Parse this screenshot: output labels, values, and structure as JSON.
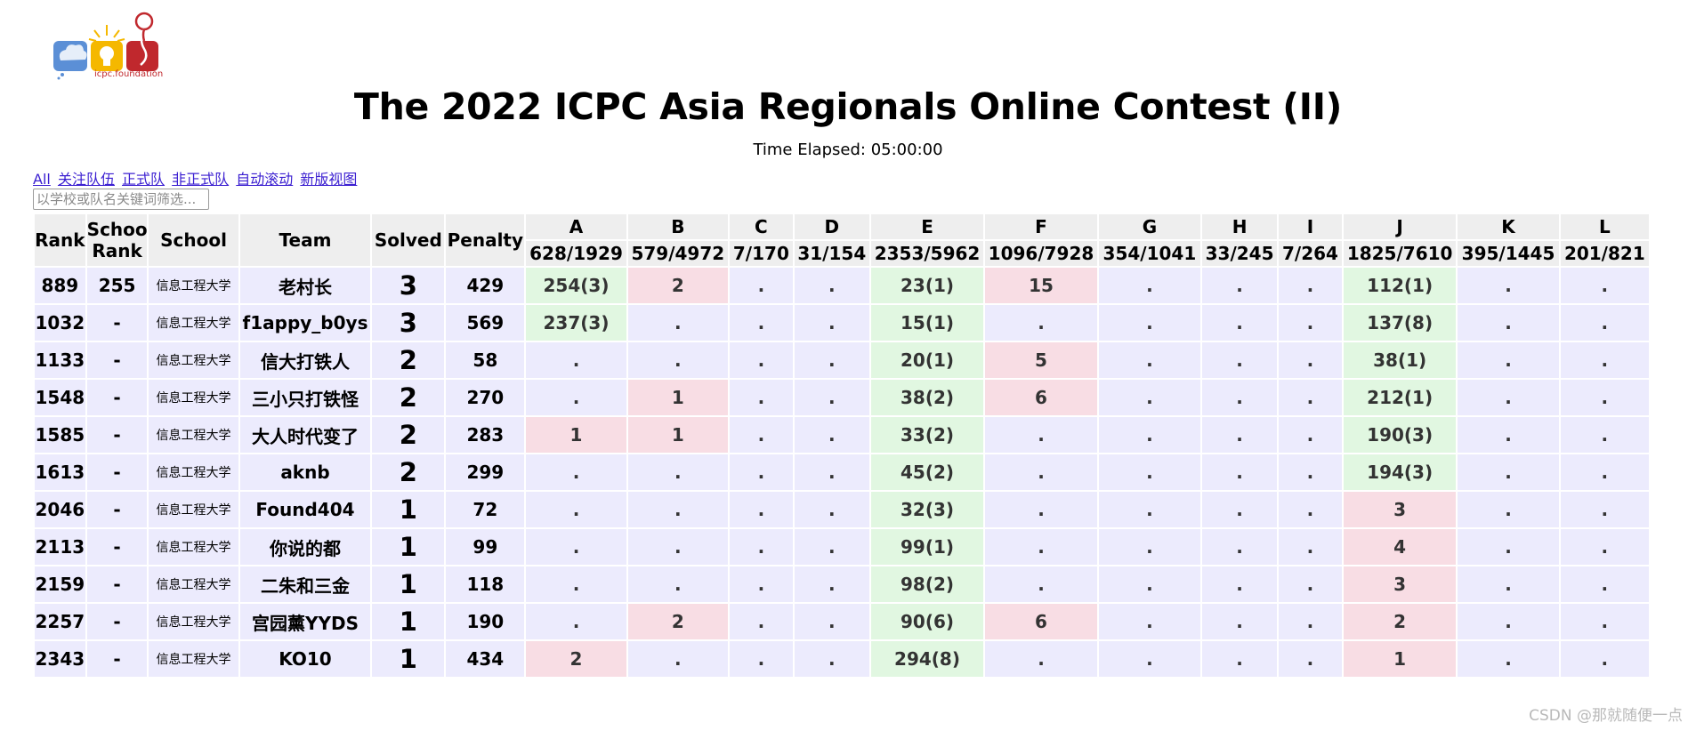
{
  "logo": {
    "caption": "icpc.foundation"
  },
  "contest": {
    "title": "The 2022 ICPC Asia Regionals Online Contest (II)",
    "elapsed": "Time Elapsed: 05:00:00"
  },
  "filters": [
    "All",
    "关注队伍",
    "正式队",
    "非正式队",
    "自动滚动",
    "新版视图"
  ],
  "search": {
    "placeholder": "以学校或队名关键词筛选..."
  },
  "headers": {
    "rank": "Rank",
    "school_rank_1": "School",
    "school_rank_2": "Rank",
    "school": "School",
    "team": "Team",
    "solved": "Solved",
    "penalty": "Penalty"
  },
  "problems": [
    {
      "id": "A",
      "stat": "628/1929"
    },
    {
      "id": "B",
      "stat": "579/4972"
    },
    {
      "id": "C",
      "stat": "7/170"
    },
    {
      "id": "D",
      "stat": "31/154"
    },
    {
      "id": "E",
      "stat": "2353/5962"
    },
    {
      "id": "F",
      "stat": "1096/7928"
    },
    {
      "id": "G",
      "stat": "354/1041"
    },
    {
      "id": "H",
      "stat": "33/245"
    },
    {
      "id": "I",
      "stat": "7/264"
    },
    {
      "id": "J",
      "stat": "1825/7610"
    },
    {
      "id": "K",
      "stat": "395/1445"
    },
    {
      "id": "L",
      "stat": "201/821"
    }
  ],
  "rows": [
    {
      "rank": "889",
      "school_rank": "255",
      "school": "信息工程大学",
      "team": "老村长",
      "solved": "3",
      "penalty": "429",
      "cells": [
        [
          "254(3)",
          "ok"
        ],
        [
          "2",
          "bad"
        ],
        [
          ".",
          ""
        ],
        [
          ".",
          ""
        ],
        [
          "23(1)",
          "ok"
        ],
        [
          "15",
          "bad"
        ],
        [
          ".",
          ""
        ],
        [
          ".",
          ""
        ],
        [
          ".",
          ""
        ],
        [
          "112(1)",
          "ok"
        ],
        [
          ".",
          ""
        ],
        [
          ".",
          ""
        ]
      ]
    },
    {
      "rank": "1032",
      "school_rank": "-",
      "school": "信息工程大学",
      "team": "f1appy_b0ys",
      "solved": "3",
      "penalty": "569",
      "cells": [
        [
          "237(3)",
          "ok"
        ],
        [
          ".",
          ""
        ],
        [
          ".",
          ""
        ],
        [
          ".",
          ""
        ],
        [
          "15(1)",
          "ok"
        ],
        [
          ".",
          ""
        ],
        [
          ".",
          ""
        ],
        [
          ".",
          ""
        ],
        [
          ".",
          ""
        ],
        [
          "137(8)",
          "ok"
        ],
        [
          ".",
          ""
        ],
        [
          ".",
          ""
        ]
      ]
    },
    {
      "rank": "1133",
      "school_rank": "-",
      "school": "信息工程大学",
      "team": "信大打铁人",
      "solved": "2",
      "penalty": "58",
      "cells": [
        [
          ".",
          ""
        ],
        [
          ".",
          ""
        ],
        [
          ".",
          ""
        ],
        [
          ".",
          ""
        ],
        [
          "20(1)",
          "ok"
        ],
        [
          "5",
          "bad"
        ],
        [
          ".",
          ""
        ],
        [
          ".",
          ""
        ],
        [
          ".",
          ""
        ],
        [
          "38(1)",
          "ok"
        ],
        [
          ".",
          ""
        ],
        [
          ".",
          ""
        ]
      ]
    },
    {
      "rank": "1548",
      "school_rank": "-",
      "school": "信息工程大学",
      "team": "三小只打铁怪",
      "solved": "2",
      "penalty": "270",
      "cells": [
        [
          ".",
          ""
        ],
        [
          "1",
          "bad"
        ],
        [
          ".",
          ""
        ],
        [
          ".",
          ""
        ],
        [
          "38(2)",
          "ok"
        ],
        [
          "6",
          "bad"
        ],
        [
          ".",
          ""
        ],
        [
          ".",
          ""
        ],
        [
          ".",
          ""
        ],
        [
          "212(1)",
          "ok"
        ],
        [
          ".",
          ""
        ],
        [
          ".",
          ""
        ]
      ]
    },
    {
      "rank": "1585",
      "school_rank": "-",
      "school": "信息工程大学",
      "team": "大人时代变了",
      "solved": "2",
      "penalty": "283",
      "cells": [
        [
          "1",
          "bad"
        ],
        [
          "1",
          "bad"
        ],
        [
          ".",
          ""
        ],
        [
          ".",
          ""
        ],
        [
          "33(2)",
          "ok"
        ],
        [
          ".",
          ""
        ],
        [
          ".",
          ""
        ],
        [
          ".",
          ""
        ],
        [
          ".",
          ""
        ],
        [
          "190(3)",
          "ok"
        ],
        [
          ".",
          ""
        ],
        [
          ".",
          ""
        ]
      ]
    },
    {
      "rank": "1613",
      "school_rank": "-",
      "school": "信息工程大学",
      "team": "aknb",
      "solved": "2",
      "penalty": "299",
      "cells": [
        [
          ".",
          ""
        ],
        [
          ".",
          ""
        ],
        [
          ".",
          ""
        ],
        [
          ".",
          ""
        ],
        [
          "45(2)",
          "ok"
        ],
        [
          ".",
          ""
        ],
        [
          ".",
          ""
        ],
        [
          ".",
          ""
        ],
        [
          ".",
          ""
        ],
        [
          "194(3)",
          "ok"
        ],
        [
          ".",
          ""
        ],
        [
          ".",
          ""
        ]
      ]
    },
    {
      "rank": "2046",
      "school_rank": "-",
      "school": "信息工程大学",
      "team": "Found404",
      "solved": "1",
      "penalty": "72",
      "cells": [
        [
          ".",
          ""
        ],
        [
          ".",
          ""
        ],
        [
          ".",
          ""
        ],
        [
          ".",
          ""
        ],
        [
          "32(3)",
          "ok"
        ],
        [
          ".",
          ""
        ],
        [
          ".",
          ""
        ],
        [
          ".",
          ""
        ],
        [
          ".",
          ""
        ],
        [
          "3",
          "bad"
        ],
        [
          ".",
          ""
        ],
        [
          ".",
          ""
        ]
      ]
    },
    {
      "rank": "2113",
      "school_rank": "-",
      "school": "信息工程大学",
      "team": "你说的都",
      "solved": "1",
      "penalty": "99",
      "cells": [
        [
          ".",
          ""
        ],
        [
          ".",
          ""
        ],
        [
          ".",
          ""
        ],
        [
          ".",
          ""
        ],
        [
          "99(1)",
          "ok"
        ],
        [
          ".",
          ""
        ],
        [
          ".",
          ""
        ],
        [
          ".",
          ""
        ],
        [
          ".",
          ""
        ],
        [
          "4",
          "bad"
        ],
        [
          ".",
          ""
        ],
        [
          ".",
          ""
        ]
      ]
    },
    {
      "rank": "2159",
      "school_rank": "-",
      "school": "信息工程大学",
      "team": "二朱和三金",
      "solved": "1",
      "penalty": "118",
      "cells": [
        [
          ".",
          ""
        ],
        [
          ".",
          ""
        ],
        [
          ".",
          ""
        ],
        [
          ".",
          ""
        ],
        [
          "98(2)",
          "ok"
        ],
        [
          ".",
          ""
        ],
        [
          ".",
          ""
        ],
        [
          ".",
          ""
        ],
        [
          ".",
          ""
        ],
        [
          "3",
          "bad"
        ],
        [
          ".",
          ""
        ],
        [
          ".",
          ""
        ]
      ]
    },
    {
      "rank": "2257",
      "school_rank": "-",
      "school": "信息工程大学",
      "team": "宫园薰YYDS",
      "solved": "1",
      "penalty": "190",
      "cells": [
        [
          ".",
          ""
        ],
        [
          "2",
          "bad"
        ],
        [
          ".",
          ""
        ],
        [
          ".",
          ""
        ],
        [
          "90(6)",
          "ok"
        ],
        [
          "6",
          "bad"
        ],
        [
          ".",
          ""
        ],
        [
          ".",
          ""
        ],
        [
          ".",
          ""
        ],
        [
          "2",
          "bad"
        ],
        [
          ".",
          ""
        ],
        [
          ".",
          ""
        ]
      ]
    },
    {
      "rank": "2343",
      "school_rank": "-",
      "school": "信息工程大学",
      "team": "KO10",
      "solved": "1",
      "penalty": "434",
      "cells": [
        [
          "2",
          "bad"
        ],
        [
          ".",
          ""
        ],
        [
          ".",
          ""
        ],
        [
          ".",
          ""
        ],
        [
          "294(8)",
          "ok"
        ],
        [
          ".",
          ""
        ],
        [
          ".",
          ""
        ],
        [
          ".",
          ""
        ],
        [
          ".",
          ""
        ],
        [
          "1",
          "bad"
        ],
        [
          ".",
          ""
        ],
        [
          ".",
          ""
        ]
      ]
    }
  ],
  "colors": {
    "accepted": "#e1f7e1",
    "rejected": "#f8dde4",
    "row": "#ecebfd",
    "header": "#eeeeee",
    "link": "#3b1fd1"
  },
  "watermark": "CSDN @那就随便一点"
}
